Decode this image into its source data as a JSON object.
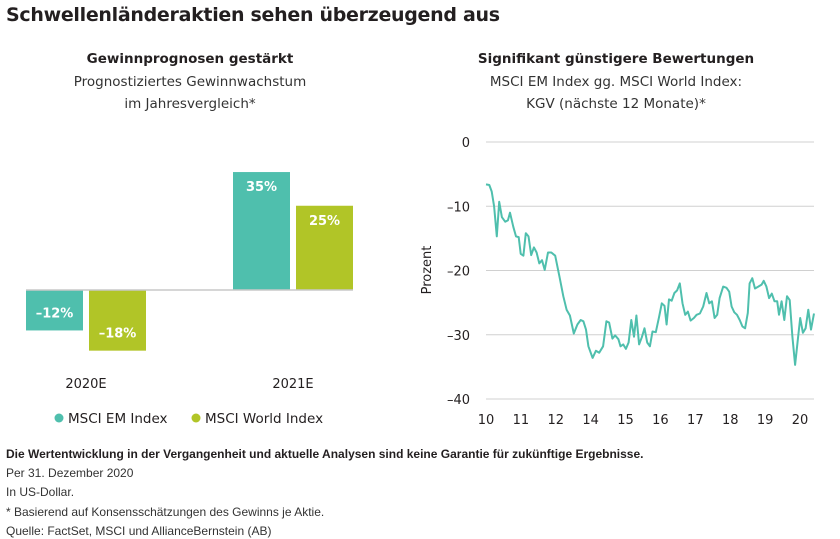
{
  "title": "Schwellenländeraktien sehen überzeugend aus",
  "colors": {
    "em": "#4fbfad",
    "world": "#b1c527",
    "grid": "#d0d0d0",
    "text": "#231f20"
  },
  "chart_data": [
    {
      "type": "bar",
      "title": "Gewinnprognosen gestärkt",
      "subtitle": [
        "Prognostiziertes Gewinnwachstum",
        "im Jahresvergleich*"
      ],
      "categories": [
        "2020E",
        "2021E"
      ],
      "series": [
        {
          "name": "MSCI EM Index",
          "values": [
            -12,
            35
          ],
          "labels": [
            "–12%",
            "35%"
          ]
        },
        {
          "name": "MSCI World Index",
          "values": [
            -18,
            25
          ],
          "labels": [
            "–18%",
            "25%"
          ]
        }
      ],
      "legend": "bottom",
      "grid": false
    },
    {
      "type": "line",
      "title": "Signifikant günstigere Bewertungen",
      "subtitle": [
        "MSCI EM Index gg. MSCI World Index:",
        "KGV (nächste 12 Monate)*"
      ],
      "ylabel": "Prozent",
      "ylim": [
        -40,
        0
      ],
      "yticks": [
        "0",
        "–10",
        "–20",
        "–30",
        "–40"
      ],
      "xticks": [
        "10",
        "11",
        "12",
        "14",
        "15",
        "16",
        "17",
        "18",
        "19",
        "20"
      ],
      "grid": true,
      "points": [
        [
          2010.0,
          -6.6
        ],
        [
          2010.11,
          -6.7
        ],
        [
          2010.19,
          -7.7
        ],
        [
          2010.27,
          -10
        ],
        [
          2010.36,
          -14.7
        ],
        [
          2010.44,
          -9.3
        ],
        [
          2010.53,
          -11.7
        ],
        [
          2010.64,
          -12.4
        ],
        [
          2010.73,
          -12.2
        ],
        [
          2010.8,
          -11
        ],
        [
          2010.91,
          -13.2
        ],
        [
          2011.0,
          -14.7
        ],
        [
          2011.09,
          -14.8
        ],
        [
          2011.16,
          -17.4
        ],
        [
          2011.25,
          -17.7
        ],
        [
          2011.33,
          -14.2
        ],
        [
          2011.42,
          -14.7
        ],
        [
          2011.51,
          -17.6
        ],
        [
          2011.6,
          -16.4
        ],
        [
          2011.69,
          -17.2
        ],
        [
          2011.78,
          -18.9
        ],
        [
          2011.87,
          -18.4
        ],
        [
          2011.96,
          -19.9
        ],
        [
          2012.07,
          -17.2
        ],
        [
          2012.18,
          -17.2
        ],
        [
          2012.31,
          -17.7
        ],
        [
          2012.45,
          -20.9
        ],
        [
          2012.58,
          -24
        ],
        [
          2012.69,
          -26.1
        ],
        [
          2012.8,
          -27
        ],
        [
          2012.93,
          -29.8
        ],
        [
          2013.05,
          -28.4
        ],
        [
          2013.16,
          -27.7
        ],
        [
          2013.25,
          -27.9
        ],
        [
          2013.34,
          -29.2
        ],
        [
          2013.42,
          -31.8
        ],
        [
          2013.56,
          -33.6
        ],
        [
          2013.67,
          -32.5
        ],
        [
          2013.78,
          -32.8
        ],
        [
          2013.91,
          -31.8
        ],
        [
          2014.02,
          -27.9
        ],
        [
          2014.11,
          -28.1
        ],
        [
          2014.22,
          -30.6
        ],
        [
          2014.31,
          -30.1
        ],
        [
          2014.42,
          -30.7
        ],
        [
          2014.49,
          -31.8
        ],
        [
          2014.58,
          -31.5
        ],
        [
          2014.67,
          -32.2
        ],
        [
          2014.76,
          -31.2
        ],
        [
          2014.85,
          -27.7
        ],
        [
          2014.94,
          -30.3
        ],
        [
          2015.02,
          -27
        ],
        [
          2015.11,
          -31.5
        ],
        [
          2015.2,
          -30.4
        ],
        [
          2015.29,
          -29
        ],
        [
          2015.38,
          -31.2
        ],
        [
          2015.47,
          -31.8
        ],
        [
          2015.56,
          -29.5
        ],
        [
          2015.67,
          -29.6
        ],
        [
          2015.78,
          -27.2
        ],
        [
          2015.87,
          -25.1
        ],
        [
          2015.96,
          -25.5
        ],
        [
          2016.03,
          -28.4
        ],
        [
          2016.11,
          -24.5
        ],
        [
          2016.2,
          -24.7
        ],
        [
          2016.29,
          -23.5
        ],
        [
          2016.38,
          -23.1
        ],
        [
          2016.47,
          -22
        ],
        [
          2016.56,
          -25.1
        ],
        [
          2016.65,
          -26.9
        ],
        [
          2016.74,
          -26.4
        ],
        [
          2016.83,
          -27.8
        ],
        [
          2016.94,
          -27.4
        ],
        [
          2017.03,
          -26.9
        ],
        [
          2017.14,
          -26.7
        ],
        [
          2017.25,
          -25.6
        ],
        [
          2017.36,
          -23.5
        ],
        [
          2017.45,
          -25.1
        ],
        [
          2017.54,
          -24.8
        ],
        [
          2017.63,
          -27.4
        ],
        [
          2017.72,
          -26.9
        ],
        [
          2017.8,
          -24.3
        ],
        [
          2017.92,
          -22.5
        ],
        [
          2018.03,
          -22.7
        ],
        [
          2018.12,
          -23.3
        ],
        [
          2018.2,
          -25.6
        ],
        [
          2018.29,
          -26.5
        ],
        [
          2018.38,
          -26.9
        ],
        [
          2018.47,
          -27.7
        ],
        [
          2018.56,
          -28.7
        ],
        [
          2018.65,
          -29
        ],
        [
          2018.74,
          -26.6
        ],
        [
          2018.8,
          -22
        ],
        [
          2018.89,
          -21.2
        ],
        [
          2018.98,
          -22.8
        ],
        [
          2019.09,
          -22.5
        ],
        [
          2019.2,
          -22.2
        ],
        [
          2019.27,
          -21.6
        ],
        [
          2019.36,
          -22.5
        ],
        [
          2019.45,
          -24.3
        ],
        [
          2019.54,
          -23.6
        ],
        [
          2019.63,
          -24.8
        ],
        [
          2019.72,
          -24.8
        ],
        [
          2019.78,
          -26.9
        ],
        [
          2019.87,
          -24.8
        ],
        [
          2019.96,
          -27.7
        ],
        [
          2020.05,
          -24
        ],
        [
          2020.14,
          -24.6
        ],
        [
          2020.23,
          -30.3
        ],
        [
          2020.32,
          -34.7
        ],
        [
          2020.41,
          -30.8
        ],
        [
          2020.49,
          -27.4
        ],
        [
          2020.58,
          -29.7
        ],
        [
          2020.67,
          -29
        ],
        [
          2020.76,
          -26.1
        ],
        [
          2020.85,
          -29.2
        ],
        [
          2020.95,
          -26.7
        ]
      ]
    }
  ],
  "footnotes": [
    "Die Wertentwicklung in der Vergangenheit und aktuelle Analysen sind keine Garantie für zukünftige Ergebnisse.",
    "Per 31. Dezember 2020",
    "In US-Dollar.",
    "* Basierend auf Konsensschätzungen des Gewinns je Aktie.",
    "Quelle: FactSet, MSCI und AllianceBernstein (AB)"
  ]
}
